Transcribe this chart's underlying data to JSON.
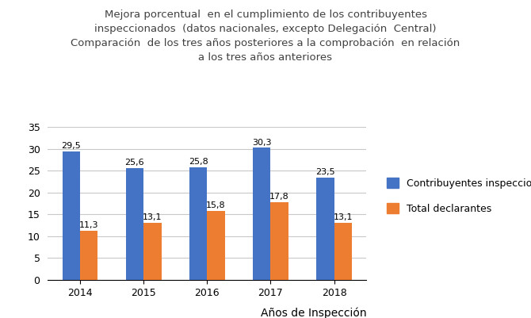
{
  "title_line1": "Mejora porcentual  en el cumplimiento de los contribuyentes",
  "title_line2": "inspeccionados  (datos nacionales, excepto Delegación  Central)",
  "title_line3": "Comparación  de los tres años posteriores a la comprobación  en relación",
  "title_line4": "a los tres años anteriores",
  "years": [
    2014,
    2015,
    2016,
    2017,
    2018
  ],
  "blue_values": [
    29.5,
    25.6,
    25.8,
    30.3,
    23.5
  ],
  "orange_values": [
    11.3,
    13.1,
    15.8,
    17.8,
    13.1
  ],
  "blue_color": "#4472C4",
  "orange_color": "#ED7D31",
  "legend_blue": "Contribuyentes inspeccionados",
  "legend_orange": "Total declarantes",
  "xlabel": "Años de Inspección",
  "ylim": [
    0,
    35
  ],
  "yticks": [
    0,
    5,
    10,
    15,
    20,
    25,
    30,
    35
  ],
  "bar_width": 0.28,
  "title_fontsize": 9.5,
  "title_color": "#404040",
  "axis_label_fontsize": 10,
  "tick_fontsize": 9,
  "legend_fontsize": 9,
  "bar_label_fontsize": 8,
  "background_color": "#FFFFFF",
  "grid_color": "#C8C8C8"
}
